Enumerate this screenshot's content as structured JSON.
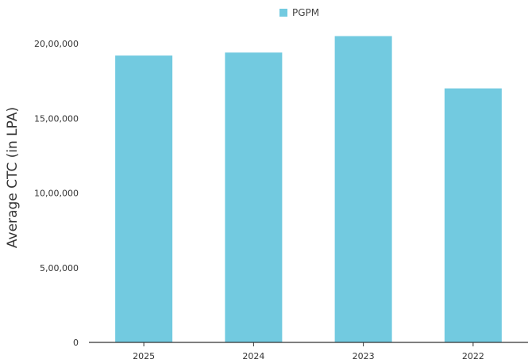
{
  "chart_data": {
    "type": "bar",
    "categories": [
      "2025",
      "2024",
      "2023",
      "2022"
    ],
    "series": [
      {
        "name": "PGPM",
        "values": [
          1920000,
          1940000,
          2050000,
          1700000
        ]
      }
    ],
    "xlabel": "",
    "ylabel": "Average CTC (in LPA)",
    "ylim": [
      0,
      2000000
    ],
    "yticks": [
      0,
      500000,
      1000000,
      1500000,
      2000000
    ],
    "ytick_labels": [
      "0",
      "5,00,000",
      "10,00,000",
      "15,00,000",
      "20,00,000"
    ],
    "grid": false,
    "legend_position": "top-center",
    "colors": {
      "bar": "#72cae0",
      "axis": "#333333"
    }
  }
}
